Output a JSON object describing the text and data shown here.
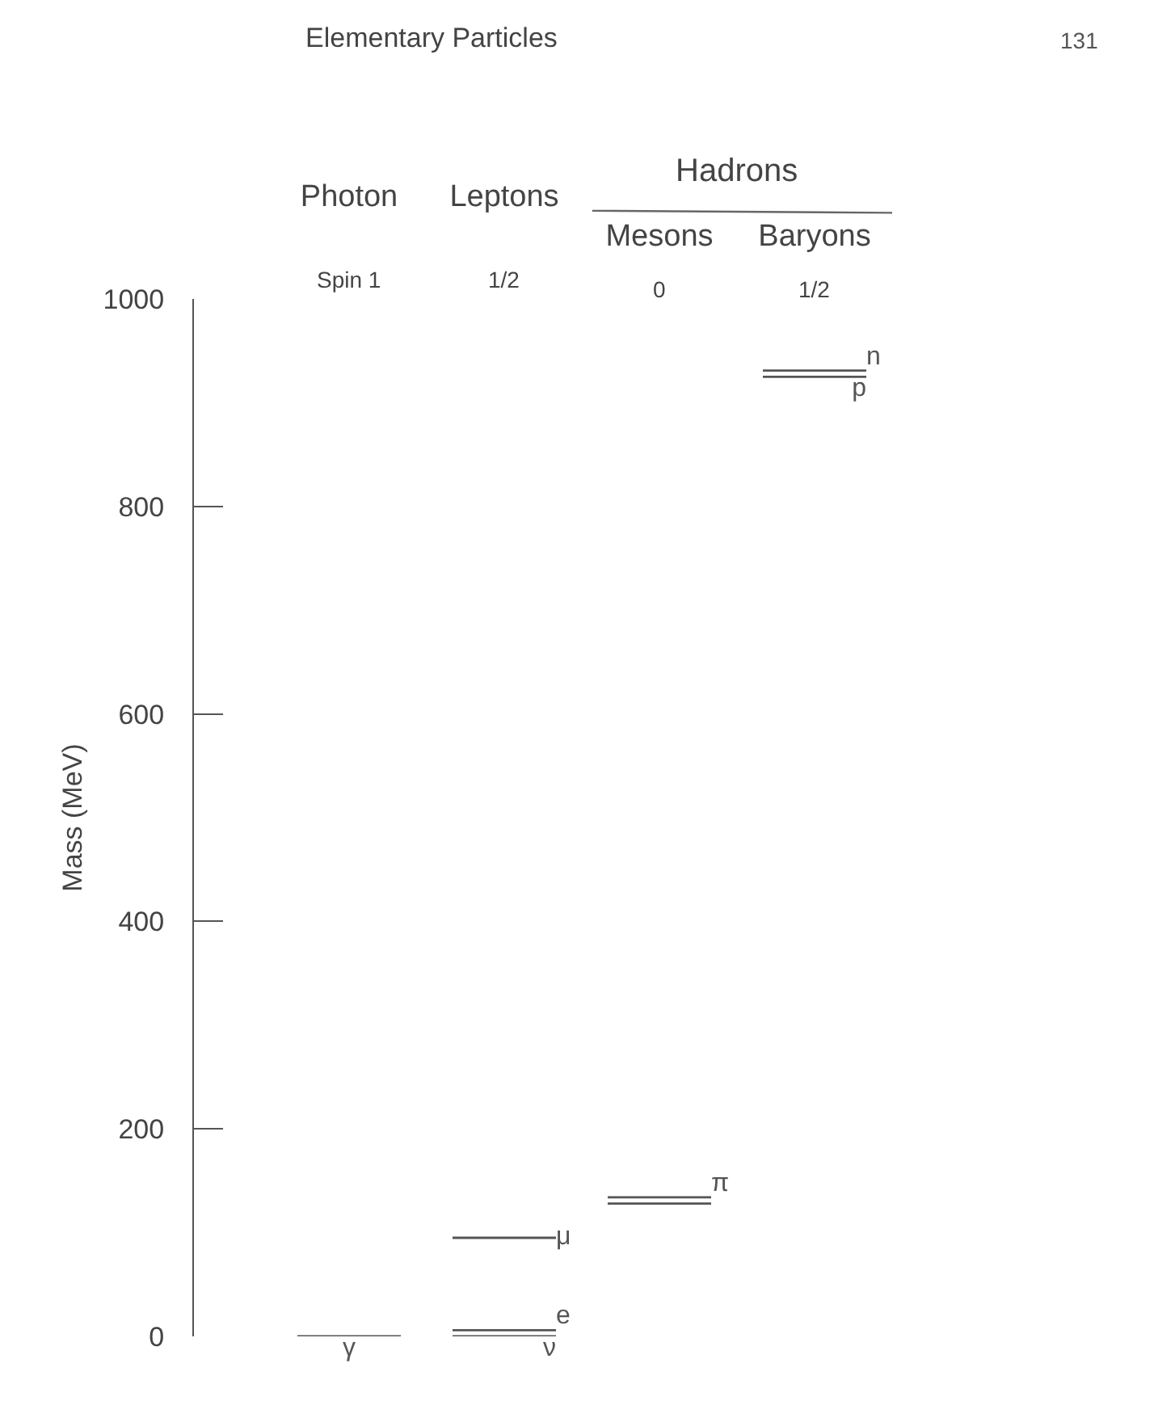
{
  "chart_data": {
    "type": "line",
    "title": "Elementary Particles",
    "ylabel": "Mass (MeV)",
    "categories": [
      null,
      "Photon",
      null,
      null,
      "Leptons",
      null,
      null,
      "Mesons",
      null,
      null,
      "Baryons",
      null
    ],
    "series": [
      {
        "name": "γ",
        "color": "#555555",
        "values": [
          0,
          0,
          0,
          null,
          null,
          null,
          null,
          null,
          null,
          null,
          null,
          null
        ]
      },
      {
        "name": "e",
        "color": "#555555",
        "values": [
          null,
          null,
          null,
          6,
          6,
          6,
          null,
          null,
          null,
          null,
          null,
          null
        ]
      },
      {
        "name": "ν",
        "color": "#555555",
        "values": [
          null,
          null,
          null,
          0,
          0,
          0,
          null,
          null,
          null,
          null,
          null,
          null
        ]
      },
      {
        "name": "μ",
        "color": "#555555",
        "values": [
          null,
          null,
          null,
          95,
          95,
          95,
          null,
          null,
          null,
          null,
          null,
          null
        ]
      },
      {
        "name": "π",
        "color": "#555555",
        "values": [
          null,
          null,
          null,
          null,
          null,
          null,
          134,
          134,
          134,
          null,
          null,
          null
        ]
      },
      {
        "color": "#555555",
        "values": [
          null,
          null,
          null,
          null,
          null,
          null,
          128,
          128,
          128,
          null,
          null,
          null
        ]
      },
      {
        "name": "n",
        "color": "#555555",
        "values": [
          null,
          null,
          null,
          null,
          null,
          null,
          null,
          null,
          null,
          931,
          931,
          931
        ]
      },
      {
        "name": "p",
        "color": "#555555",
        "values": [
          null,
          null,
          null,
          null,
          null,
          null,
          null,
          null,
          null,
          925,
          925,
          925
        ]
      }
    ],
    "ylim": [
      0,
      1000
    ],
    "yticks": [
      0,
      200,
      400,
      600,
      800,
      1000
    ],
    "marker": "none",
    "line_style": "solid",
    "annotations": [
      "Hadrons",
      "Spin 1",
      "1/2",
      "0",
      "1/2",
      "131"
    ]
  }
}
